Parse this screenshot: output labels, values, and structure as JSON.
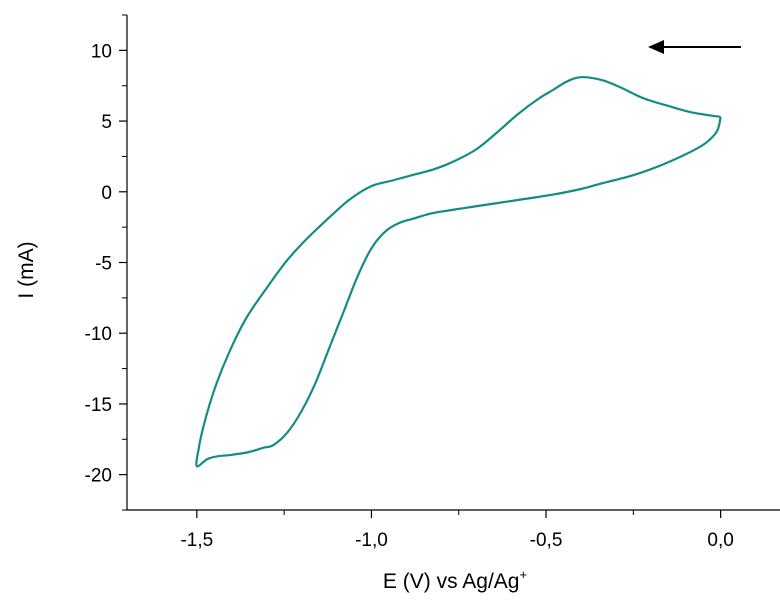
{
  "chart_data": {
    "type": "line",
    "title": "",
    "xlabel": "E (V) vs Ag/Ag",
    "xlabel_superscript": "+",
    "ylabel": "I (mA)",
    "xlim": [
      -1.7,
      0.17
    ],
    "ylim": [
      -22.5,
      12.5
    ],
    "x_ticks": [
      -1.5,
      -1.0,
      -0.5,
      0.0
    ],
    "x_tick_labels": [
      "-1,5",
      "-1,0",
      "-0,5",
      "0,0"
    ],
    "y_ticks": [
      -20,
      -15,
      -10,
      -5,
      0,
      5,
      10
    ],
    "y_tick_labels": [
      "-20",
      "-15",
      "-10",
      "-5",
      "0",
      "5",
      "10"
    ],
    "grid": false,
    "legend": "none",
    "annotations": [
      {
        "type": "arrow",
        "direction": "left",
        "meaning": "scan direction"
      }
    ],
    "series": [
      {
        "color": "#138c86",
        "x": [
          0.0,
          -0.03,
          -0.08,
          -0.14,
          -0.22,
          -0.28,
          -0.34,
          -0.4,
          -0.44,
          -0.48,
          -0.52,
          -0.58,
          -0.64,
          -0.7,
          -0.76,
          -0.82,
          -0.88,
          -0.94,
          -1.0,
          -1.06,
          -1.12,
          -1.18,
          -1.24,
          -1.3,
          -1.36,
          -1.41,
          -1.45,
          -1.48,
          -1.495,
          -1.5,
          -1.47,
          -1.44,
          -1.4,
          -1.35,
          -1.31,
          -1.28,
          -1.24,
          -1.2,
          -1.16,
          -1.12,
          -1.08,
          -1.04,
          -1.0,
          -0.96,
          -0.92,
          -0.88,
          -0.84,
          -0.8,
          -0.72,
          -0.64,
          -0.56,
          -0.48,
          -0.4,
          -0.34,
          -0.26,
          -0.2,
          -0.14,
          -0.08,
          -0.04,
          -0.01,
          0.0
        ],
        "y": [
          5.3,
          5.4,
          5.6,
          6.0,
          6.6,
          7.3,
          7.9,
          8.1,
          7.8,
          7.2,
          6.6,
          5.5,
          4.2,
          3.0,
          2.2,
          1.6,
          1.2,
          0.8,
          0.4,
          -0.5,
          -1.8,
          -3.2,
          -4.8,
          -6.8,
          -9.0,
          -11.5,
          -14.0,
          -16.5,
          -18.2,
          -19.4,
          -18.9,
          -18.7,
          -18.6,
          -18.4,
          -18.1,
          -17.9,
          -17.0,
          -15.5,
          -13.5,
          -11.0,
          -8.5,
          -6.0,
          -4.0,
          -2.8,
          -2.2,
          -1.9,
          -1.6,
          -1.4,
          -1.1,
          -0.8,
          -0.5,
          -0.2,
          0.2,
          0.6,
          1.1,
          1.6,
          2.2,
          2.9,
          3.5,
          4.3,
          5.3
        ]
      }
    ]
  }
}
